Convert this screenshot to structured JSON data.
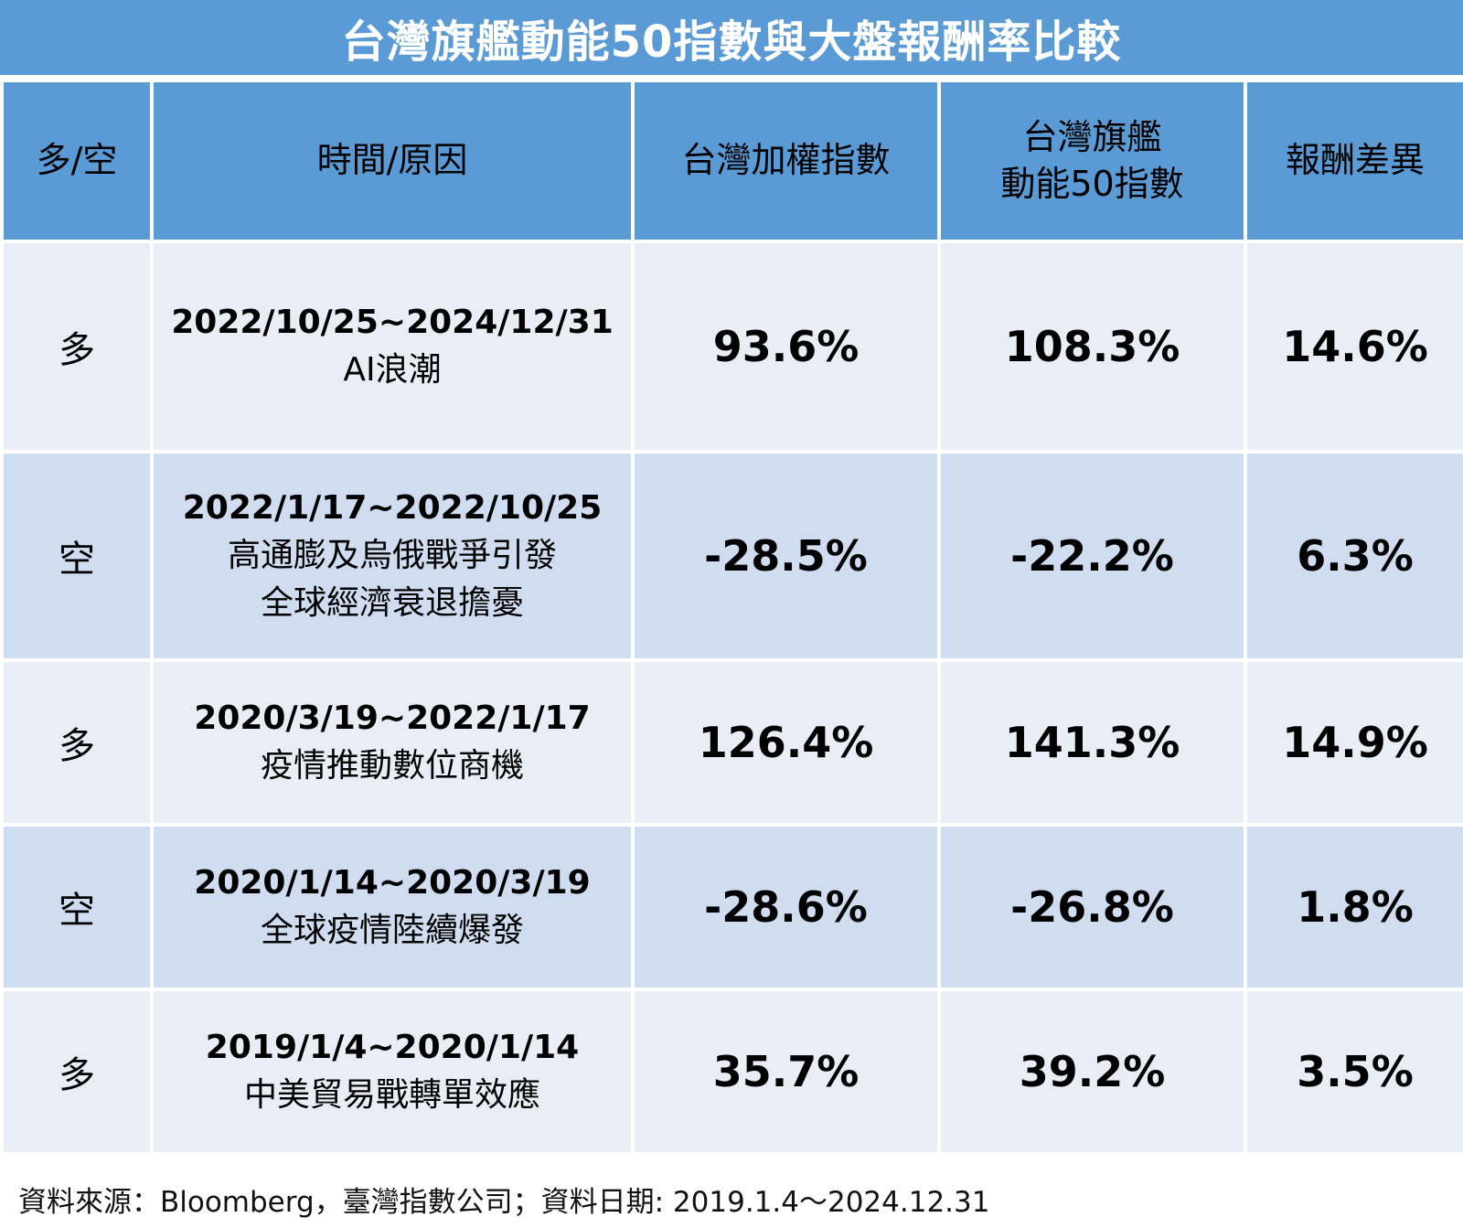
{
  "title": "台灣旗艦動能50指數與大盤報酬率比較",
  "headers": {
    "direction": "多/空",
    "period": "時間/原因",
    "taiex": "台灣加權指數",
    "flagship_line1": "台灣旗艦",
    "flagship_line2": "動能50指數",
    "diff": "報酬差異"
  },
  "rows": [
    {
      "direction": "多",
      "date": "2022/10/25~2024/12/31",
      "reason_lines": [
        "AI浪潮"
      ],
      "taiex": "93.6%",
      "flagship": "108.3%",
      "diff": "14.6%"
    },
    {
      "direction": "空",
      "date": "2022/1/17~2022/10/25",
      "reason_lines": [
        "高通膨及烏俄戰爭引發",
        "全球經濟衰退擔憂"
      ],
      "taiex": "-28.5%",
      "flagship": "-22.2%",
      "diff": "6.3%"
    },
    {
      "direction": "多",
      "date": "2020/3/19~2022/1/17",
      "reason_lines": [
        "疫情推動數位商機"
      ],
      "taiex": "126.4%",
      "flagship": "141.3%",
      "diff": "14.9%"
    },
    {
      "direction": "空",
      "date": "2020/1/14~2020/3/19",
      "reason_lines": [
        "全球疫情陸續爆發"
      ],
      "taiex": "-28.6%",
      "flagship": "-26.8%",
      "diff": "1.8%"
    },
    {
      "direction": "多",
      "date": "2019/1/4~2020/1/14",
      "reason_lines": [
        "中美貿易戰轉單效應"
      ],
      "taiex": "35.7%",
      "flagship": "39.2%",
      "diff": "3.5%"
    }
  ],
  "footer": "資料來源：Bloomberg，臺灣指數公司；資料日期: 2019.1.4～2024.12.31",
  "colors": {
    "header_blue": "#5b9bd5",
    "row_light": "#e9edf6",
    "row_dark": "#d0ddf0"
  }
}
